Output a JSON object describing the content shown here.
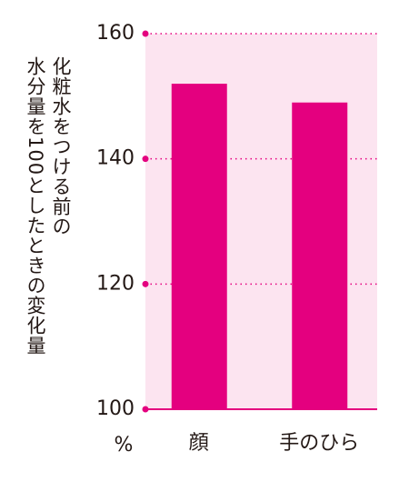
{
  "chart_data": {
    "type": "bar",
    "ylabel": [
      "化粧水をつける前の",
      "水分量を100としたときの変化量"
    ],
    "yunit": "%",
    "categories": [
      "顔",
      "手のひら"
    ],
    "values": [
      152,
      149
    ],
    "color": "#e4007f",
    "ylim": [
      100,
      160
    ],
    "yticks": [
      100,
      120,
      140,
      160
    ],
    "grid": true
  }
}
